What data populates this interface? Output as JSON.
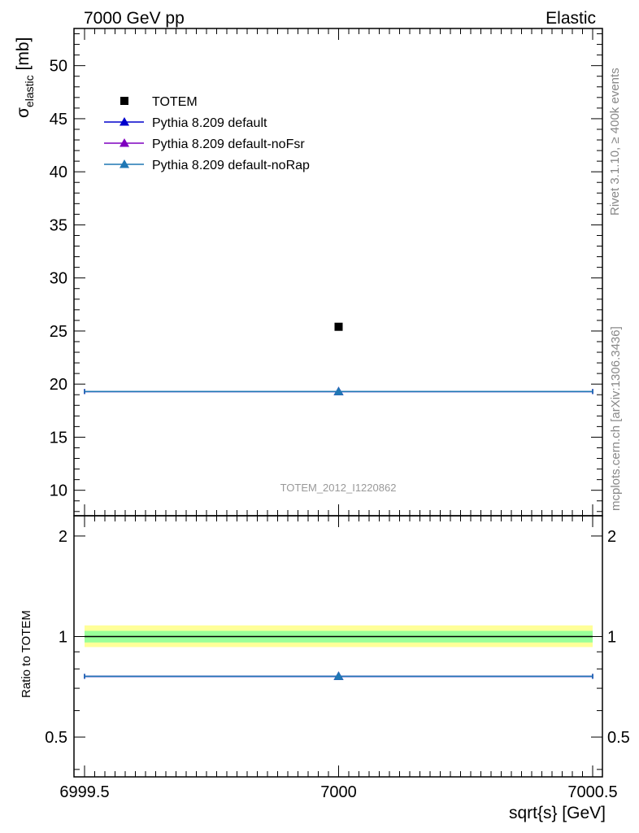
{
  "header": {
    "left": "7000 GeV pp",
    "right": "Elastic"
  },
  "side_text": {
    "top": "Rivet 3.1.10, ≥ 400k events",
    "bottom": "mcplots.cern.ch [arXiv:1306.3436]"
  },
  "analysis_label": "TOTEM_2012_I1220862",
  "colors": {
    "data": "#000000",
    "default": "#0000cc",
    "noFsr": "#7f00bf",
    "noRap": "#1f77b4",
    "band_inner": "#99ff99",
    "band_outer": "#ffff99"
  },
  "chart_data": [
    {
      "type": "scatter",
      "ylabel_main": "σ",
      "ylabel_sub": "elastic",
      "ylabel_unit": " [mb]",
      "xlim": [
        6999.5,
        7000.5
      ],
      "ylim": [
        7.6,
        53.5
      ],
      "yticks": [
        10,
        15,
        20,
        25,
        30,
        35,
        40,
        45,
        50
      ],
      "legend_position": "top-left",
      "series": [
        {
          "name": "TOTEM",
          "marker": "square",
          "x": [
            7000
          ],
          "y": [
            25.4
          ],
          "xerr": [
            0
          ]
        },
        {
          "name": "Pythia 8.209 default",
          "marker": "triangle",
          "x": [
            7000
          ],
          "y": [
            19.3
          ],
          "xerr": [
            0.5
          ]
        },
        {
          "name": "Pythia 8.209 default-noFsr",
          "marker": "triangle",
          "x": [
            7000
          ],
          "y": [
            19.3
          ],
          "xerr": [
            0.5
          ]
        },
        {
          "name": "Pythia 8.209 default-noRap",
          "marker": "triangle",
          "x": [
            7000
          ],
          "y": [
            19.3
          ],
          "xerr": [
            0.5
          ]
        }
      ]
    },
    {
      "type": "scatter",
      "ylabel": "Ratio to TOTEM",
      "xlabel": "sqrt{s} [GeV]",
      "xlim": [
        6999.5,
        7000.5
      ],
      "ylim": [
        0.38,
        2.3
      ],
      "yticks": [
        0.5,
        1,
        2
      ],
      "xticks": [
        6999.5,
        7000,
        7000.5
      ],
      "xtick_labels": [
        "6999.5",
        "7000",
        "7000.5"
      ],
      "ytick_labels": [
        "0.5",
        "1",
        "2"
      ],
      "reference_band": {
        "inner": [
          0.96,
          1.04
        ],
        "outer": [
          0.93,
          1.08
        ]
      },
      "series": [
        {
          "name": "Pythia 8.209 default",
          "marker": "triangle",
          "x": [
            7000
          ],
          "y": [
            0.76
          ],
          "xerr": [
            0.5
          ]
        },
        {
          "name": "Pythia 8.209 default-noFsr",
          "marker": "triangle",
          "x": [
            7000
          ],
          "y": [
            0.76
          ],
          "xerr": [
            0.5
          ]
        },
        {
          "name": "Pythia 8.209 default-noRap",
          "marker": "triangle",
          "x": [
            7000
          ],
          "y": [
            0.76
          ],
          "xerr": [
            0.5
          ]
        }
      ]
    }
  ]
}
